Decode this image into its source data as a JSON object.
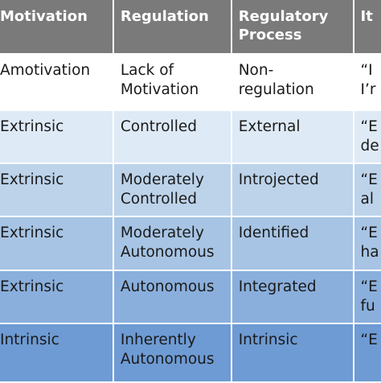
{
  "table": {
    "headers": [
      "Motivation",
      "Regulation",
      [
        "Regulatory",
        "Process"
      ],
      "It"
    ],
    "rows": [
      {
        "motivation": "Amotivation",
        "regulation": [
          "Lack of",
          "Motivation"
        ],
        "process": [
          "Non-",
          "regulation"
        ],
        "item": [
          "“I",
          "I’r"
        ]
      },
      {
        "motivation": "Extrinsic",
        "regulation": [
          "Controlled"
        ],
        "process": [
          "External"
        ],
        "item": [
          "“E",
          "de"
        ]
      },
      {
        "motivation": "Extrinsic",
        "regulation": [
          "Moderately",
          "Controlled"
        ],
        "process": [
          "Introjected"
        ],
        "item": [
          "“E",
          "al"
        ]
      },
      {
        "motivation": "Extrinsic",
        "regulation": [
          "Moderately",
          "Autonomous"
        ],
        "process": [
          "Identified"
        ],
        "item": [
          "“E",
          "ha"
        ]
      },
      {
        "motivation": "Extrinsic",
        "regulation": [
          "Autonomous"
        ],
        "process": [
          "Integrated"
        ],
        "item": [
          "“E",
          "fu"
        ]
      },
      {
        "motivation": "Intrinsic",
        "regulation": [
          "Inherently",
          "Autonomous"
        ],
        "process": [
          "Intrinsic"
        ],
        "item": [
          "“E"
        ]
      }
    ],
    "colors": {
      "header": "#7a7a7a",
      "row_backgrounds": [
        "#ffffff",
        "#deeaf6",
        "#bcd3ea",
        "#a7c4e4",
        "#8aafdc",
        "#6e9bd4"
      ]
    }
  }
}
